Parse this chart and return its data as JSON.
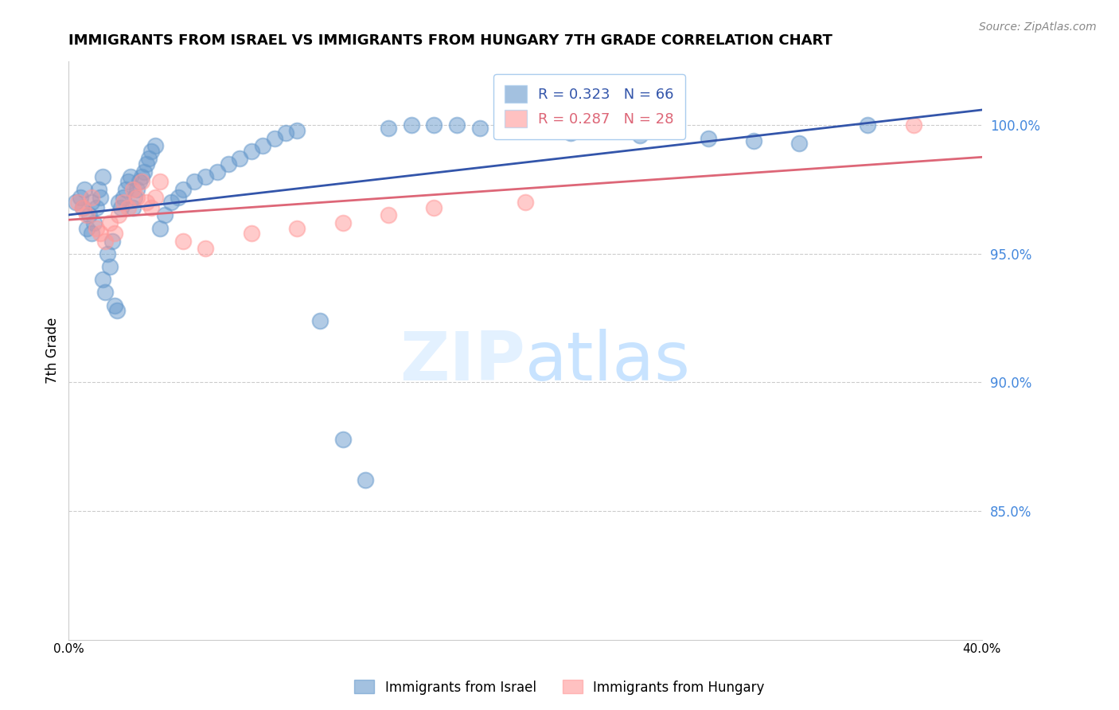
{
  "title": "IMMIGRANTS FROM ISRAEL VS IMMIGRANTS FROM HUNGARY 7TH GRADE CORRELATION CHART",
  "source": "Source: ZipAtlas.com",
  "ylabel": "7th Grade",
  "yticks": [
    "100.0%",
    "95.0%",
    "90.0%",
    "85.0%"
  ],
  "ytick_vals": [
    1.0,
    0.95,
    0.9,
    0.85
  ],
  "xlim": [
    0.0,
    0.4
  ],
  "ylim": [
    0.8,
    1.025
  ],
  "r_israel": 0.323,
  "n_israel": 66,
  "r_hungary": 0.287,
  "n_hungary": 28,
  "color_israel": "#6699CC",
  "color_hungary": "#FF9999",
  "trendline_israel_color": "#3355AA",
  "trendline_hungary_color": "#DD6677",
  "legend_label_israel": "Immigrants from Israel",
  "legend_label_hungary": "Immigrants from Hungary",
  "israel_x": [
    0.003,
    0.005,
    0.006,
    0.007,
    0.008,
    0.009,
    0.01,
    0.01,
    0.011,
    0.012,
    0.013,
    0.014,
    0.015,
    0.015,
    0.016,
    0.017,
    0.018,
    0.019,
    0.02,
    0.021,
    0.022,
    0.023,
    0.024,
    0.025,
    0.026,
    0.027,
    0.028,
    0.029,
    0.03,
    0.031,
    0.032,
    0.033,
    0.034,
    0.035,
    0.036,
    0.038,
    0.04,
    0.042,
    0.045,
    0.048,
    0.05,
    0.055,
    0.06,
    0.065,
    0.07,
    0.075,
    0.08,
    0.085,
    0.09,
    0.095,
    0.1,
    0.11,
    0.12,
    0.13,
    0.14,
    0.15,
    0.16,
    0.17,
    0.18,
    0.2,
    0.22,
    0.25,
    0.28,
    0.3,
    0.32,
    0.35
  ],
  "israel_y": [
    0.97,
    0.972,
    0.968,
    0.975,
    0.96,
    0.965,
    0.958,
    0.97,
    0.962,
    0.968,
    0.975,
    0.972,
    0.98,
    0.94,
    0.935,
    0.95,
    0.945,
    0.955,
    0.93,
    0.928,
    0.97,
    0.968,
    0.972,
    0.975,
    0.978,
    0.98,
    0.968,
    0.972,
    0.975,
    0.978,
    0.98,
    0.982,
    0.985,
    0.987,
    0.99,
    0.992,
    0.96,
    0.965,
    0.97,
    0.972,
    0.975,
    0.978,
    0.98,
    0.982,
    0.985,
    0.987,
    0.99,
    0.992,
    0.995,
    0.997,
    0.998,
    0.924,
    0.878,
    0.862,
    0.999,
    1.0,
    1.0,
    1.0,
    0.999,
    0.998,
    0.997,
    0.996,
    0.995,
    0.994,
    0.993,
    1.0
  ],
  "hungary_x": [
    0.004,
    0.006,
    0.008,
    0.01,
    0.012,
    0.014,
    0.016,
    0.018,
    0.02,
    0.022,
    0.024,
    0.026,
    0.028,
    0.03,
    0.032,
    0.034,
    0.036,
    0.038,
    0.04,
    0.05,
    0.06,
    0.08,
    0.1,
    0.12,
    0.14,
    0.16,
    0.2,
    0.37
  ],
  "hungary_y": [
    0.97,
    0.968,
    0.965,
    0.972,
    0.96,
    0.958,
    0.955,
    0.962,
    0.958,
    0.965,
    0.97,
    0.968,
    0.975,
    0.972,
    0.978,
    0.97,
    0.968,
    0.972,
    0.978,
    0.955,
    0.952,
    0.958,
    0.96,
    0.962,
    0.965,
    0.968,
    0.97,
    1.0
  ]
}
